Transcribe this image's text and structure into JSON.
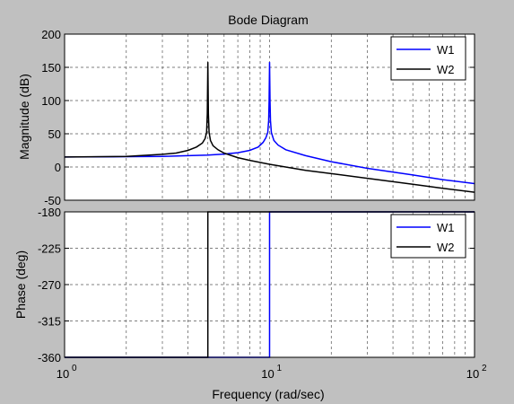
{
  "chart_data": [
    {
      "type": "line",
      "title": "Bode Diagram",
      "ylabel": "Magnitude (dB)",
      "xscale": "log",
      "xlim": [
        1,
        100
      ],
      "ylim": [
        -50,
        200
      ],
      "yticks": [
        -50,
        0,
        50,
        100,
        150,
        200
      ],
      "grid": true,
      "legend": "top-right",
      "series": [
        {
          "name": "W1",
          "color": "#0000ff",
          "x": [
            1,
            2,
            3,
            4,
            5,
            6,
            7,
            8,
            8.8,
            9.3,
            9.6,
            9.8,
            9.9,
            9.95,
            10,
            10.05,
            10.1,
            10.2,
            10.5,
            11,
            12,
            15,
            20,
            30,
            50,
            70,
            100
          ],
          "y": [
            15,
            15.5,
            16,
            17,
            18,
            19.5,
            21.5,
            25,
            30,
            37,
            44,
            52,
            70,
            100,
            158,
            100,
            70,
            52,
            40,
            33,
            26,
            17,
            8,
            -2,
            -12,
            -19,
            -25
          ]
        },
        {
          "name": "W2",
          "color": "#000000",
          "x": [
            1,
            2,
            3,
            3.5,
            4,
            4.4,
            4.7,
            4.85,
            4.93,
            4.97,
            5,
            5.03,
            5.07,
            5.15,
            5.3,
            5.6,
            6,
            7,
            8,
            10,
            15,
            20,
            30,
            50,
            70,
            100
          ],
          "y": [
            15,
            16,
            19,
            21,
            25,
            30,
            36,
            43,
            52,
            80,
            158,
            80,
            52,
            40,
            32,
            26,
            21,
            14,
            10,
            4,
            -5,
            -10,
            -17,
            -26,
            -32,
            -38
          ]
        }
      ]
    },
    {
      "type": "line",
      "xlabel": "Frequency  (rad/sec)",
      "ylabel": "Phase (deg)",
      "xscale": "log",
      "xlim": [
        1,
        100
      ],
      "ylim": [
        -360,
        -180
      ],
      "yticks": [
        -360,
        -315,
        -270,
        -225,
        -180
      ],
      "xticks": [
        1,
        10,
        100
      ],
      "grid": true,
      "legend": "top-right",
      "series": [
        {
          "name": "W1",
          "color": "#0000ff",
          "x": [
            1,
            9.999,
            10.001,
            100
          ],
          "y": [
            -360,
            -360,
            -180,
            -180
          ]
        },
        {
          "name": "W2",
          "color": "#000000",
          "x": [
            1,
            4.999,
            5.001,
            100
          ],
          "y": [
            -360,
            -360,
            -180,
            -180
          ]
        }
      ]
    }
  ]
}
